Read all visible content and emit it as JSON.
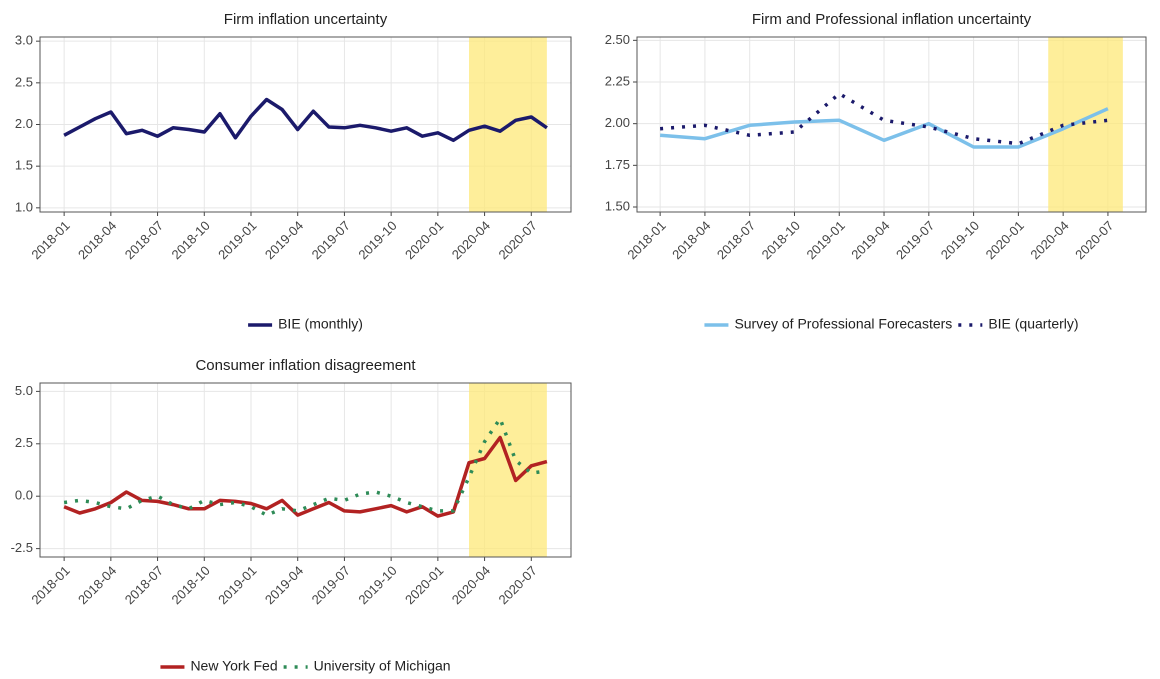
{
  "chart_data": [
    {
      "type": "line",
      "title": "Firm inflation uncertainty",
      "x": [
        "2018-01",
        "2018-02",
        "2018-03",
        "2018-04",
        "2018-05",
        "2018-06",
        "2018-07",
        "2018-08",
        "2018-09",
        "2018-10",
        "2018-11",
        "2018-12",
        "2019-01",
        "2019-02",
        "2019-03",
        "2019-04",
        "2019-05",
        "2019-06",
        "2019-07",
        "2019-08",
        "2019-09",
        "2019-10",
        "2019-11",
        "2019-12",
        "2020-01",
        "2020-02",
        "2020-03",
        "2020-04",
        "2020-05",
        "2020-06",
        "2020-07",
        "2020-08"
      ],
      "series": [
        {
          "name": "BIE (monthly)",
          "color": "#1b1a6b",
          "dash": "solid",
          "values": [
            1.87,
            1.97,
            2.07,
            2.15,
            1.89,
            1.93,
            1.86,
            1.96,
            1.94,
            1.91,
            2.13,
            1.84,
            2.1,
            2.3,
            2.18,
            1.94,
            2.16,
            1.97,
            1.96,
            1.99,
            1.96,
            1.92,
            1.96,
            1.86,
            1.9,
            1.81,
            1.93,
            1.98,
            1.92,
            2.05,
            2.09,
            1.96
          ]
        }
      ],
      "ylim": [
        0.95,
        3.05
      ],
      "yticks": [
        {
          "value": 1,
          "label": "1.0"
        },
        1.5,
        {
          "value": 2,
          "label": "2.0"
        },
        2.5,
        {
          "value": 3,
          "label": "3.0"
        }
      ],
      "xticks": [
        "2018-01",
        "2018-04",
        "2018-07",
        "2018-10",
        "2019-01",
        "2019-04",
        "2019-07",
        "2019-10",
        "2020-01",
        "2020-04",
        "2020-07"
      ],
      "shade": [
        "2020-03",
        "2020-08"
      ],
      "grid": true
    },
    {
      "type": "line",
      "title": "Firm and Professional inflation uncertainty",
      "x": [
        "2018-01",
        "2018-04",
        "2018-07",
        "2018-10",
        "2019-01",
        "2019-04",
        "2019-07",
        "2019-10",
        "2020-01",
        "2020-04",
        "2020-07"
      ],
      "series": [
        {
          "name": "Survey of Professional Forecasters",
          "color": "#7cc0ea",
          "dash": "solid",
          "values": [
            1.93,
            1.91,
            1.99,
            2.01,
            2.02,
            1.9,
            2.0,
            1.86,
            1.86,
            1.97,
            2.09
          ]
        },
        {
          "name": "BIE (quarterly)",
          "color": "#1b1a6b",
          "dash": "dotted",
          "values": [
            1.97,
            1.99,
            1.93,
            1.95,
            2.18,
            2.02,
            1.98,
            1.91,
            1.88,
            1.99,
            2.02
          ]
        }
      ],
      "ylim": [
        1.47,
        2.52
      ],
      "yticks": [
        {
          "value": 1.5,
          "label": "1.50"
        },
        1.75,
        {
          "value": 2,
          "label": "2.00"
        },
        2.25,
        {
          "value": 2.5,
          "label": "2.50"
        }
      ],
      "xticks": [
        "2018-01",
        "2018-04",
        "2018-07",
        "2018-10",
        "2019-01",
        "2019-04",
        "2019-07",
        "2019-10",
        "2020-01",
        "2020-04",
        "2020-07"
      ],
      "shade": [
        "2020-03",
        "2020-08"
      ],
      "grid": true
    },
    {
      "type": "line",
      "title": "Consumer inflation disagreement",
      "x": [
        "2018-01",
        "2018-02",
        "2018-03",
        "2018-04",
        "2018-05",
        "2018-06",
        "2018-07",
        "2018-08",
        "2018-09",
        "2018-10",
        "2018-11",
        "2018-12",
        "2019-01",
        "2019-02",
        "2019-03",
        "2019-04",
        "2019-05",
        "2019-06",
        "2019-07",
        "2019-08",
        "2019-09",
        "2019-10",
        "2019-11",
        "2019-12",
        "2020-01",
        "2020-02",
        "2020-03",
        "2020-04",
        "2020-05",
        "2020-06",
        "2020-07",
        "2020-08"
      ],
      "series": [
        {
          "name": "New York Fed",
          "color": "#b22222",
          "dash": "solid",
          "values": [
            -0.5,
            -0.8,
            -0.6,
            -0.3,
            0.2,
            -0.2,
            -0.25,
            -0.4,
            -0.6,
            -0.6,
            -0.2,
            -0.25,
            -0.35,
            -0.6,
            -0.2,
            -0.9,
            -0.6,
            -0.3,
            -0.7,
            -0.75,
            -0.6,
            -0.45,
            -0.75,
            -0.5,
            -0.95,
            -0.75,
            1.6,
            1.8,
            2.8,
            0.75,
            1.45,
            1.65
          ]
        },
        {
          "name": "University of Michigan",
          "color": "#2e8b57",
          "dash": "dotted",
          "values": [
            -0.3,
            -0.2,
            -0.3,
            -0.5,
            -0.6,
            -0.2,
            0.0,
            -0.4,
            -0.6,
            -0.2,
            -0.4,
            -0.3,
            -0.5,
            -0.9,
            -0.6,
            -0.7,
            -0.4,
            -0.1,
            -0.2,
            0.1,
            0.2,
            0.0,
            -0.3,
            -0.5,
            -0.7,
            -0.7,
            0.9,
            2.6,
            3.7,
            1.7,
            1.1,
            1.2
          ]
        }
      ],
      "ylim": [
        -2.9,
        5.4
      ],
      "yticks": [
        -2.5,
        {
          "value": 0,
          "label": "0.0"
        },
        2.5,
        {
          "value": 5,
          "label": "5.0"
        }
      ],
      "xticks": [
        "2018-01",
        "2018-04",
        "2018-07",
        "2018-10",
        "2019-01",
        "2019-04",
        "2019-07",
        "2019-10",
        "2020-01",
        "2020-04",
        "2020-07"
      ],
      "shade": [
        "2020-03",
        "2020-08"
      ],
      "grid": true
    }
  ]
}
